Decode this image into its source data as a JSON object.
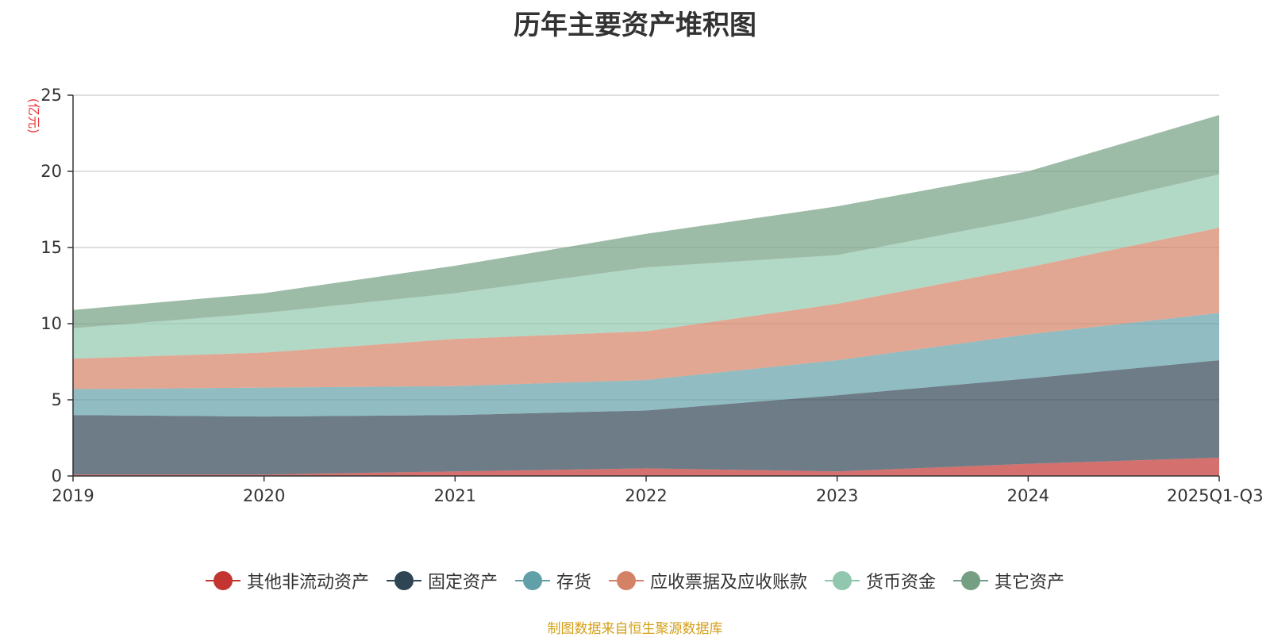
{
  "chart_data": {
    "type": "area",
    "stacked": true,
    "title": "历年主要资产堆积图",
    "ylabel": "(亿元)",
    "xlabel": "",
    "categories": [
      "2019",
      "2020",
      "2021",
      "2022",
      "2023",
      "2024",
      "2025Q1-Q3"
    ],
    "ylim": [
      0,
      25
    ],
    "yticks": [
      0,
      5,
      10,
      15,
      20,
      25
    ],
    "grid": true,
    "legend_position": "bottom",
    "series": [
      {
        "name": "其他非流动资产",
        "color": "#c23531",
        "values": [
          0.1,
          0.1,
          0.3,
          0.5,
          0.3,
          0.8,
          1.2
        ]
      },
      {
        "name": "固定资产",
        "color": "#2f4554",
        "values": [
          3.9,
          3.8,
          3.7,
          3.8,
          5.0,
          5.6,
          6.4
        ]
      },
      {
        "name": "存货",
        "color": "#61a0a8",
        "values": [
          1.7,
          1.9,
          1.9,
          2.0,
          2.3,
          2.9,
          3.1
        ]
      },
      {
        "name": "应收票据及应收账款",
        "color": "#d48265",
        "values": [
          2.0,
          2.3,
          3.1,
          3.2,
          3.7,
          4.4,
          5.6
        ]
      },
      {
        "name": "货币资金",
        "color": "#91c7ae",
        "values": [
          2.0,
          2.6,
          3.0,
          4.2,
          3.2,
          3.2,
          3.5
        ]
      },
      {
        "name": "其它资产",
        "color": "#749f83",
        "values": [
          1.2,
          1.3,
          1.8,
          2.2,
          3.2,
          3.1,
          3.9
        ]
      }
    ]
  },
  "source_text": "制图数据来自恒生聚源数据库"
}
